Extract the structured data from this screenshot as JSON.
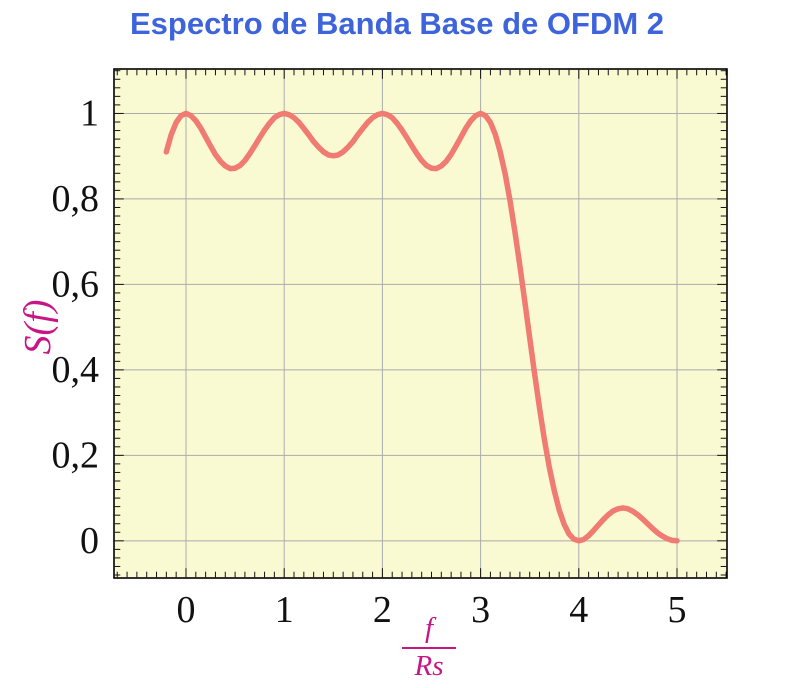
{
  "title": {
    "text": "Espectro de Banda Base de OFDM 2"
  },
  "colors": {
    "title": "#3E64DB",
    "axis_label": "#C71585",
    "curve": "#EF7B73",
    "plot_background": "#FAFAD2",
    "grid": "#ABABAB",
    "frame": "#000000",
    "tick": "#111111",
    "tick_label": "#111111",
    "page_background": "#FFFFFF"
  },
  "chart_data": {
    "type": "line",
    "title": "Espectro de Banda Base de OFDM 2",
    "ylabel": "S(f)",
    "xlabel_numerator": "f",
    "xlabel_denominator": "Rs",
    "xlim": [
      -0.733,
      5.509
    ],
    "ylim": [
      -0.087,
      1.104
    ],
    "x_tick_values": [
      0,
      1,
      2,
      3,
      4,
      5
    ],
    "x_tick_labels": [
      "0",
      "1",
      "2",
      "3",
      "4",
      "5"
    ],
    "y_tick_values": [
      0,
      0.2,
      0.4,
      0.6,
      0.8,
      1
    ],
    "y_tick_labels": [
      "0",
      "0,2",
      "0,4",
      "0,6",
      "0,8",
      "1"
    ],
    "minor_x_step": 0.1,
    "minor_y_step": 0.02,
    "grid": true,
    "legend": null,
    "series": [
      {
        "name": "S(f)",
        "description": "OFDM baseband spectrum, sum of sinc^2(f/Rs - k) for k=0..3",
        "points": [
          [
            -0.2,
            0.91
          ],
          [
            -0.15,
            0.951
          ],
          [
            -0.1,
            0.979
          ],
          [
            -0.05,
            0.995
          ],
          [
            0,
            1
          ],
          [
            0.05,
            0.995
          ],
          [
            0.1,
            0.983
          ],
          [
            0.15,
            0.966
          ],
          [
            0.2,
            0.945
          ],
          [
            0.25,
            0.924
          ],
          [
            0.3,
            0.904
          ],
          [
            0.35,
            0.888
          ],
          [
            0.4,
            0.877
          ],
          [
            0.45,
            0.871
          ],
          [
            0.5,
            0.872
          ],
          [
            0.55,
            0.878
          ],
          [
            0.6,
            0.89
          ],
          [
            0.65,
            0.906
          ],
          [
            0.7,
            0.924
          ],
          [
            0.75,
            0.943
          ],
          [
            0.8,
            0.961
          ],
          [
            0.85,
            0.977
          ],
          [
            0.9,
            0.99
          ],
          [
            0.95,
            0.997
          ],
          [
            1,
            1
          ],
          [
            1.05,
            0.997
          ],
          [
            1.1,
            0.99
          ],
          [
            1.15,
            0.979
          ],
          [
            1.2,
            0.965
          ],
          [
            1.25,
            0.95
          ],
          [
            1.3,
            0.934
          ],
          [
            1.35,
            0.921
          ],
          [
            1.4,
            0.91
          ],
          [
            1.45,
            0.903
          ],
          [
            1.5,
            0.901
          ],
          [
            1.55,
            0.903
          ],
          [
            1.6,
            0.91
          ],
          [
            1.65,
            0.921
          ],
          [
            1.7,
            0.934
          ],
          [
            1.75,
            0.95
          ],
          [
            1.8,
            0.965
          ],
          [
            1.85,
            0.979
          ],
          [
            1.9,
            0.99
          ],
          [
            1.95,
            0.997
          ],
          [
            2,
            1
          ],
          [
            2.05,
            0.997
          ],
          [
            2.1,
            0.99
          ],
          [
            2.15,
            0.977
          ],
          [
            2.2,
            0.961
          ],
          [
            2.25,
            0.943
          ],
          [
            2.3,
            0.924
          ],
          [
            2.35,
            0.906
          ],
          [
            2.4,
            0.89
          ],
          [
            2.45,
            0.878
          ],
          [
            2.5,
            0.872
          ],
          [
            2.55,
            0.871
          ],
          [
            2.6,
            0.877
          ],
          [
            2.65,
            0.888
          ],
          [
            2.7,
            0.904
          ],
          [
            2.75,
            0.924
          ],
          [
            2.8,
            0.945
          ],
          [
            2.85,
            0.966
          ],
          [
            2.9,
            0.983
          ],
          [
            2.95,
            0.995
          ],
          [
            3,
            1
          ],
          [
            3.05,
            0.995
          ],
          [
            3.1,
            0.979
          ],
          [
            3.15,
            0.951
          ],
          [
            3.2,
            0.91
          ],
          [
            3.25,
            0.858
          ],
          [
            3.3,
            0.795
          ],
          [
            3.35,
            0.722
          ],
          [
            3.4,
            0.643
          ],
          [
            3.45,
            0.56
          ],
          [
            3.5,
            0.475
          ],
          [
            3.55,
            0.391
          ],
          [
            3.6,
            0.311
          ],
          [
            3.65,
            0.237
          ],
          [
            3.7,
            0.172
          ],
          [
            3.75,
            0.117
          ],
          [
            3.8,
            0.072
          ],
          [
            3.85,
            0.039
          ],
          [
            3.9,
            0.016
          ],
          [
            3.95,
            0.004
          ],
          [
            4,
            0
          ],
          [
            4.05,
            0.003
          ],
          [
            4.1,
            0.012
          ],
          [
            4.15,
            0.024
          ],
          [
            4.2,
            0.037
          ],
          [
            4.25,
            0.05
          ],
          [
            4.3,
            0.061
          ],
          [
            4.35,
            0.07
          ],
          [
            4.4,
            0.075
          ],
          [
            4.45,
            0.077
          ],
          [
            4.5,
            0.075
          ],
          [
            4.55,
            0.069
          ],
          [
            4.6,
            0.061
          ],
          [
            4.65,
            0.051
          ],
          [
            4.7,
            0.04
          ],
          [
            4.75,
            0.029
          ],
          [
            4.8,
            0.019
          ],
          [
            4.85,
            0.011
          ],
          [
            4.9,
            0.005
          ],
          [
            4.95,
            0.001
          ],
          [
            5,
            0
          ]
        ]
      }
    ]
  }
}
